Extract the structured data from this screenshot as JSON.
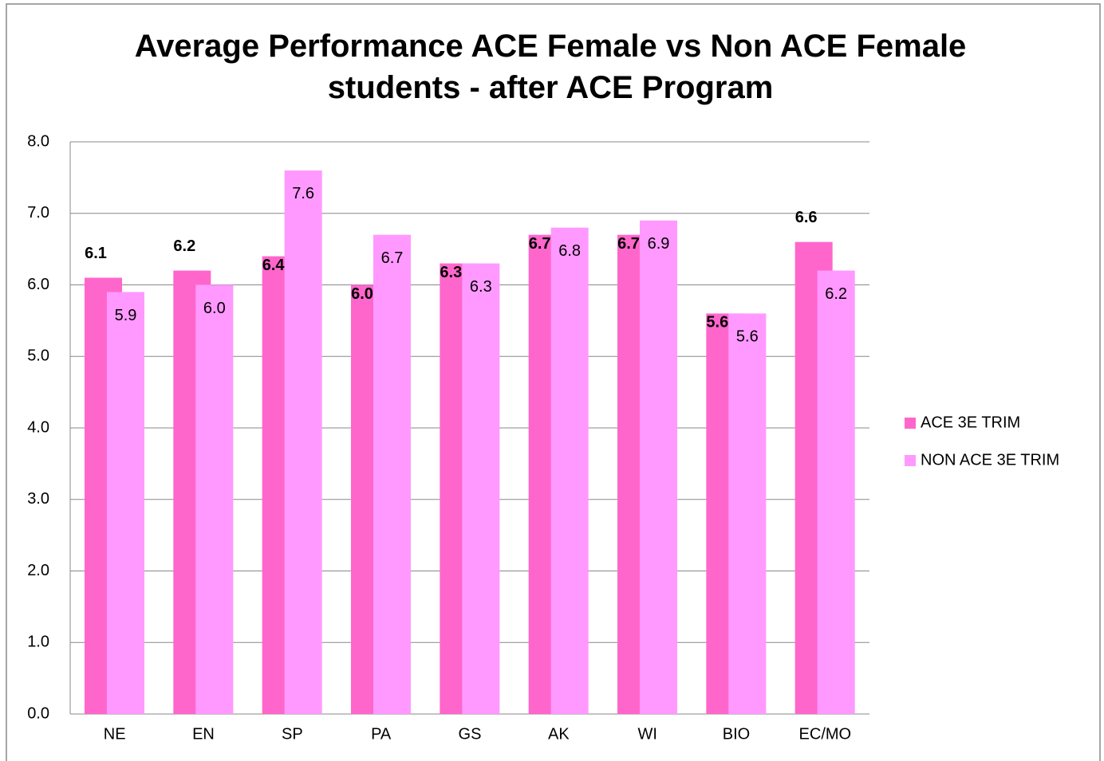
{
  "chart_data": {
    "type": "bar",
    "title": "Average Performance ACE Female vs Non ACE Female students - after ACE Program",
    "categories": [
      "NE",
      "EN",
      "SP",
      "PA",
      "GS",
      "AK",
      "WI",
      "BIO",
      "EC/MO"
    ],
    "series": [
      {
        "name": "ACE 3E TRIM",
        "color": "#ff66cc",
        "values": [
          6.1,
          6.2,
          6.4,
          6.0,
          6.3,
          6.7,
          6.7,
          5.6,
          6.6
        ],
        "value_labels": [
          "6.1",
          "6.2",
          "6.4",
          "6.0",
          "6.3",
          "6.7",
          "6.7",
          "5.6",
          "6.6"
        ]
      },
      {
        "name": "NON ACE 3E TRIM",
        "color": "#ff99ff",
        "values": [
          5.9,
          6.0,
          7.6,
          6.7,
          6.3,
          6.8,
          6.9,
          5.6,
          6.2
        ],
        "value_labels": [
          "5.9",
          "6.0",
          "7.6",
          "6.7",
          "6.3",
          "6.8",
          "6.9",
          "5.6",
          "6.2"
        ]
      }
    ],
    "ylim": [
      0,
      8
    ],
    "yticks": [
      {
        "value": 0,
        "label": "0.0"
      },
      {
        "value": 1,
        "label": "1.0"
      },
      {
        "value": 2,
        "label": "2.0"
      },
      {
        "value": 3,
        "label": "3.0"
      },
      {
        "value": 4,
        "label": "4.0"
      },
      {
        "value": 5,
        "label": "5.0"
      },
      {
        "value": 6,
        "label": "6.0"
      },
      {
        "value": 7,
        "label": "7.0"
      },
      {
        "value": 8,
        "label": "8.0"
      }
    ],
    "grid": true,
    "legend": "right"
  }
}
